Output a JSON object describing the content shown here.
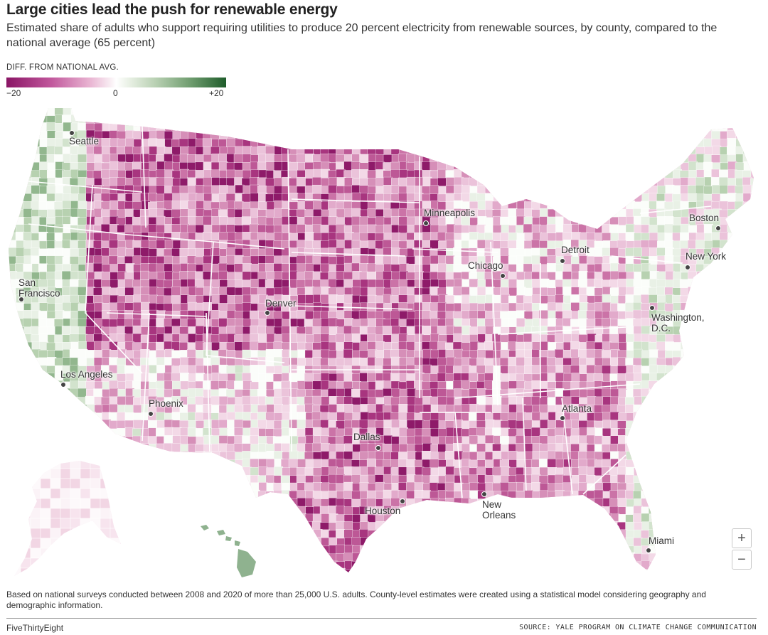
{
  "title": "Large cities lead the push for renewable energy",
  "subtitle": "Estimated share of adults who support requiring utilities to produce 20 percent electricity from renewable sources, by county, compared to the national average (65 percent)",
  "legend": {
    "title": "DIFF. FROM NATIONAL AVG.",
    "ticks": [
      "−20",
      "0",
      "+20"
    ],
    "colors": {
      "low": "#8a1565",
      "mid": "#ffffff",
      "high": "#1f5d2b"
    }
  },
  "cities": [
    {
      "id": "seattle",
      "label": "Seattle"
    },
    {
      "id": "san-francisco",
      "label": "San\nFrancisco"
    },
    {
      "id": "los-angeles",
      "label": "Los Angeles"
    },
    {
      "id": "phoenix",
      "label": "Phoenix"
    },
    {
      "id": "denver",
      "label": "Denver"
    },
    {
      "id": "minneapolis",
      "label": "Minneapolis"
    },
    {
      "id": "chicago",
      "label": "Chicago"
    },
    {
      "id": "detroit",
      "label": "Detroit"
    },
    {
      "id": "boston",
      "label": "Boston"
    },
    {
      "id": "new-york",
      "label": "New York"
    },
    {
      "id": "washington",
      "label": "Washington,\nD.C."
    },
    {
      "id": "atlanta",
      "label": "Atlanta"
    },
    {
      "id": "dallas",
      "label": "Dallas"
    },
    {
      "id": "houston",
      "label": "Houston"
    },
    {
      "id": "new-orleans",
      "label": "New\nOrleans"
    },
    {
      "id": "miami",
      "label": "Miami"
    }
  ],
  "zoom": {
    "in": "+",
    "out": "−"
  },
  "footnote": "Based on national surveys conducted between 2008 and 2020 of more than 25,000 U.S. adults. County-level estimates were created using a statistical model considering geography and demographic information.",
  "brand": "FiveThirtyEight",
  "source": "SOURCE: YALE PROGRAM ON CLIMATE CHANGE COMMUNICATION"
}
